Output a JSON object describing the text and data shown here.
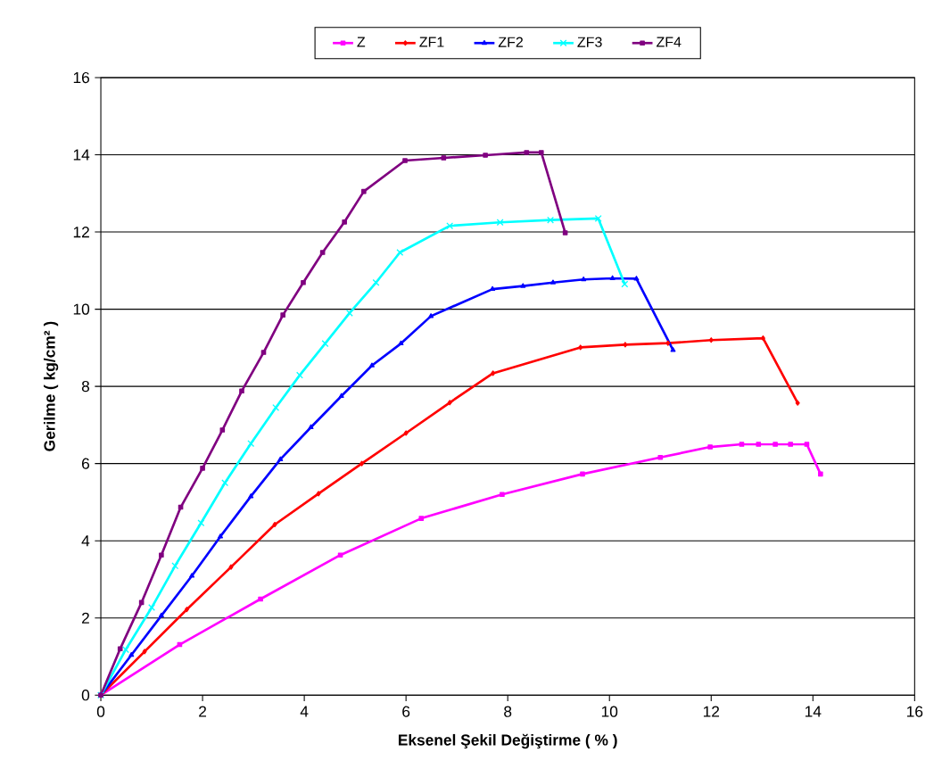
{
  "chart_data": {
    "type": "line",
    "xlabel": "Eksenel Şekil Değiştirme ( % )",
    "ylabel": "Gerilme ( kg/cm² )",
    "xlim": [
      0,
      16
    ],
    "ylim": [
      0,
      16
    ],
    "xticks": [
      0,
      2,
      4,
      6,
      8,
      10,
      12,
      14,
      16
    ],
    "yticks": [
      0,
      2,
      4,
      6,
      8,
      10,
      12,
      14,
      16
    ],
    "grid": "y",
    "legend": "top",
    "line_style": "solid",
    "series": [
      {
        "name": "Z",
        "color": "#ff00ff",
        "marker": "square",
        "x": [
          0,
          1.55,
          3.14,
          4.71,
          6.3,
          7.89,
          9.47,
          11.0,
          11.98,
          12.6,
          12.93,
          13.26,
          13.56,
          13.88,
          14.15
        ],
        "values": [
          0,
          1.31,
          2.49,
          3.63,
          4.58,
          5.2,
          5.73,
          6.16,
          6.43,
          6.5,
          6.5,
          6.5,
          6.5,
          6.5,
          5.73
        ]
      },
      {
        "name": "ZF1",
        "color": "#ff0000",
        "marker": "diamond",
        "x": [
          0,
          0.86,
          1.69,
          2.56,
          3.42,
          4.28,
          5.13,
          6.0,
          6.86,
          7.71,
          9.43,
          10.31,
          11.15,
          12.0,
          13.02,
          13.7
        ],
        "values": [
          0,
          1.13,
          2.22,
          3.32,
          4.42,
          5.22,
          6.0,
          6.79,
          7.58,
          8.34,
          9.01,
          9.08,
          9.12,
          9.2,
          9.25,
          7.57
        ]
      },
      {
        "name": "ZF2",
        "color": "#0000ff",
        "marker": "triangle",
        "x": [
          0,
          0.6,
          1.19,
          1.79,
          2.35,
          2.95,
          3.53,
          4.13,
          4.73,
          5.33,
          5.9,
          6.49,
          7.7,
          8.3,
          8.89,
          9.49,
          10.06,
          10.53,
          11.25
        ],
        "values": [
          0,
          1.04,
          2.06,
          3.09,
          4.11,
          5.15,
          6.11,
          6.94,
          7.75,
          8.54,
          9.11,
          9.82,
          10.52,
          10.6,
          10.69,
          10.77,
          10.8,
          10.79,
          8.94
        ]
      },
      {
        "name": "ZF3",
        "color": "#00ffff",
        "marker": "cross",
        "x": [
          0,
          0.49,
          1.0,
          1.46,
          1.97,
          2.44,
          2.95,
          3.44,
          3.91,
          4.41,
          4.89,
          5.41,
          5.88,
          6.86,
          7.85,
          8.84,
          9.78,
          10.3
        ],
        "values": [
          0,
          1.18,
          2.27,
          3.35,
          4.46,
          5.5,
          6.52,
          7.45,
          8.29,
          9.11,
          9.9,
          10.69,
          11.47,
          12.16,
          12.25,
          12.31,
          12.35,
          10.65
        ]
      },
      {
        "name": "ZF4",
        "color": "#800080",
        "marker": "square",
        "x": [
          0,
          0.38,
          0.8,
          1.19,
          1.57,
          2.0,
          2.39,
          2.77,
          3.2,
          3.58,
          3.98,
          4.36,
          4.79,
          5.17,
          5.98,
          6.74,
          7.56,
          8.37,
          8.66,
          9.13
        ],
        "values": [
          0,
          1.2,
          2.4,
          3.63,
          4.87,
          5.88,
          6.87,
          7.88,
          8.88,
          9.85,
          10.69,
          11.47,
          12.26,
          13.05,
          13.85,
          13.92,
          13.99,
          14.06,
          14.06,
          11.98
        ]
      }
    ]
  }
}
